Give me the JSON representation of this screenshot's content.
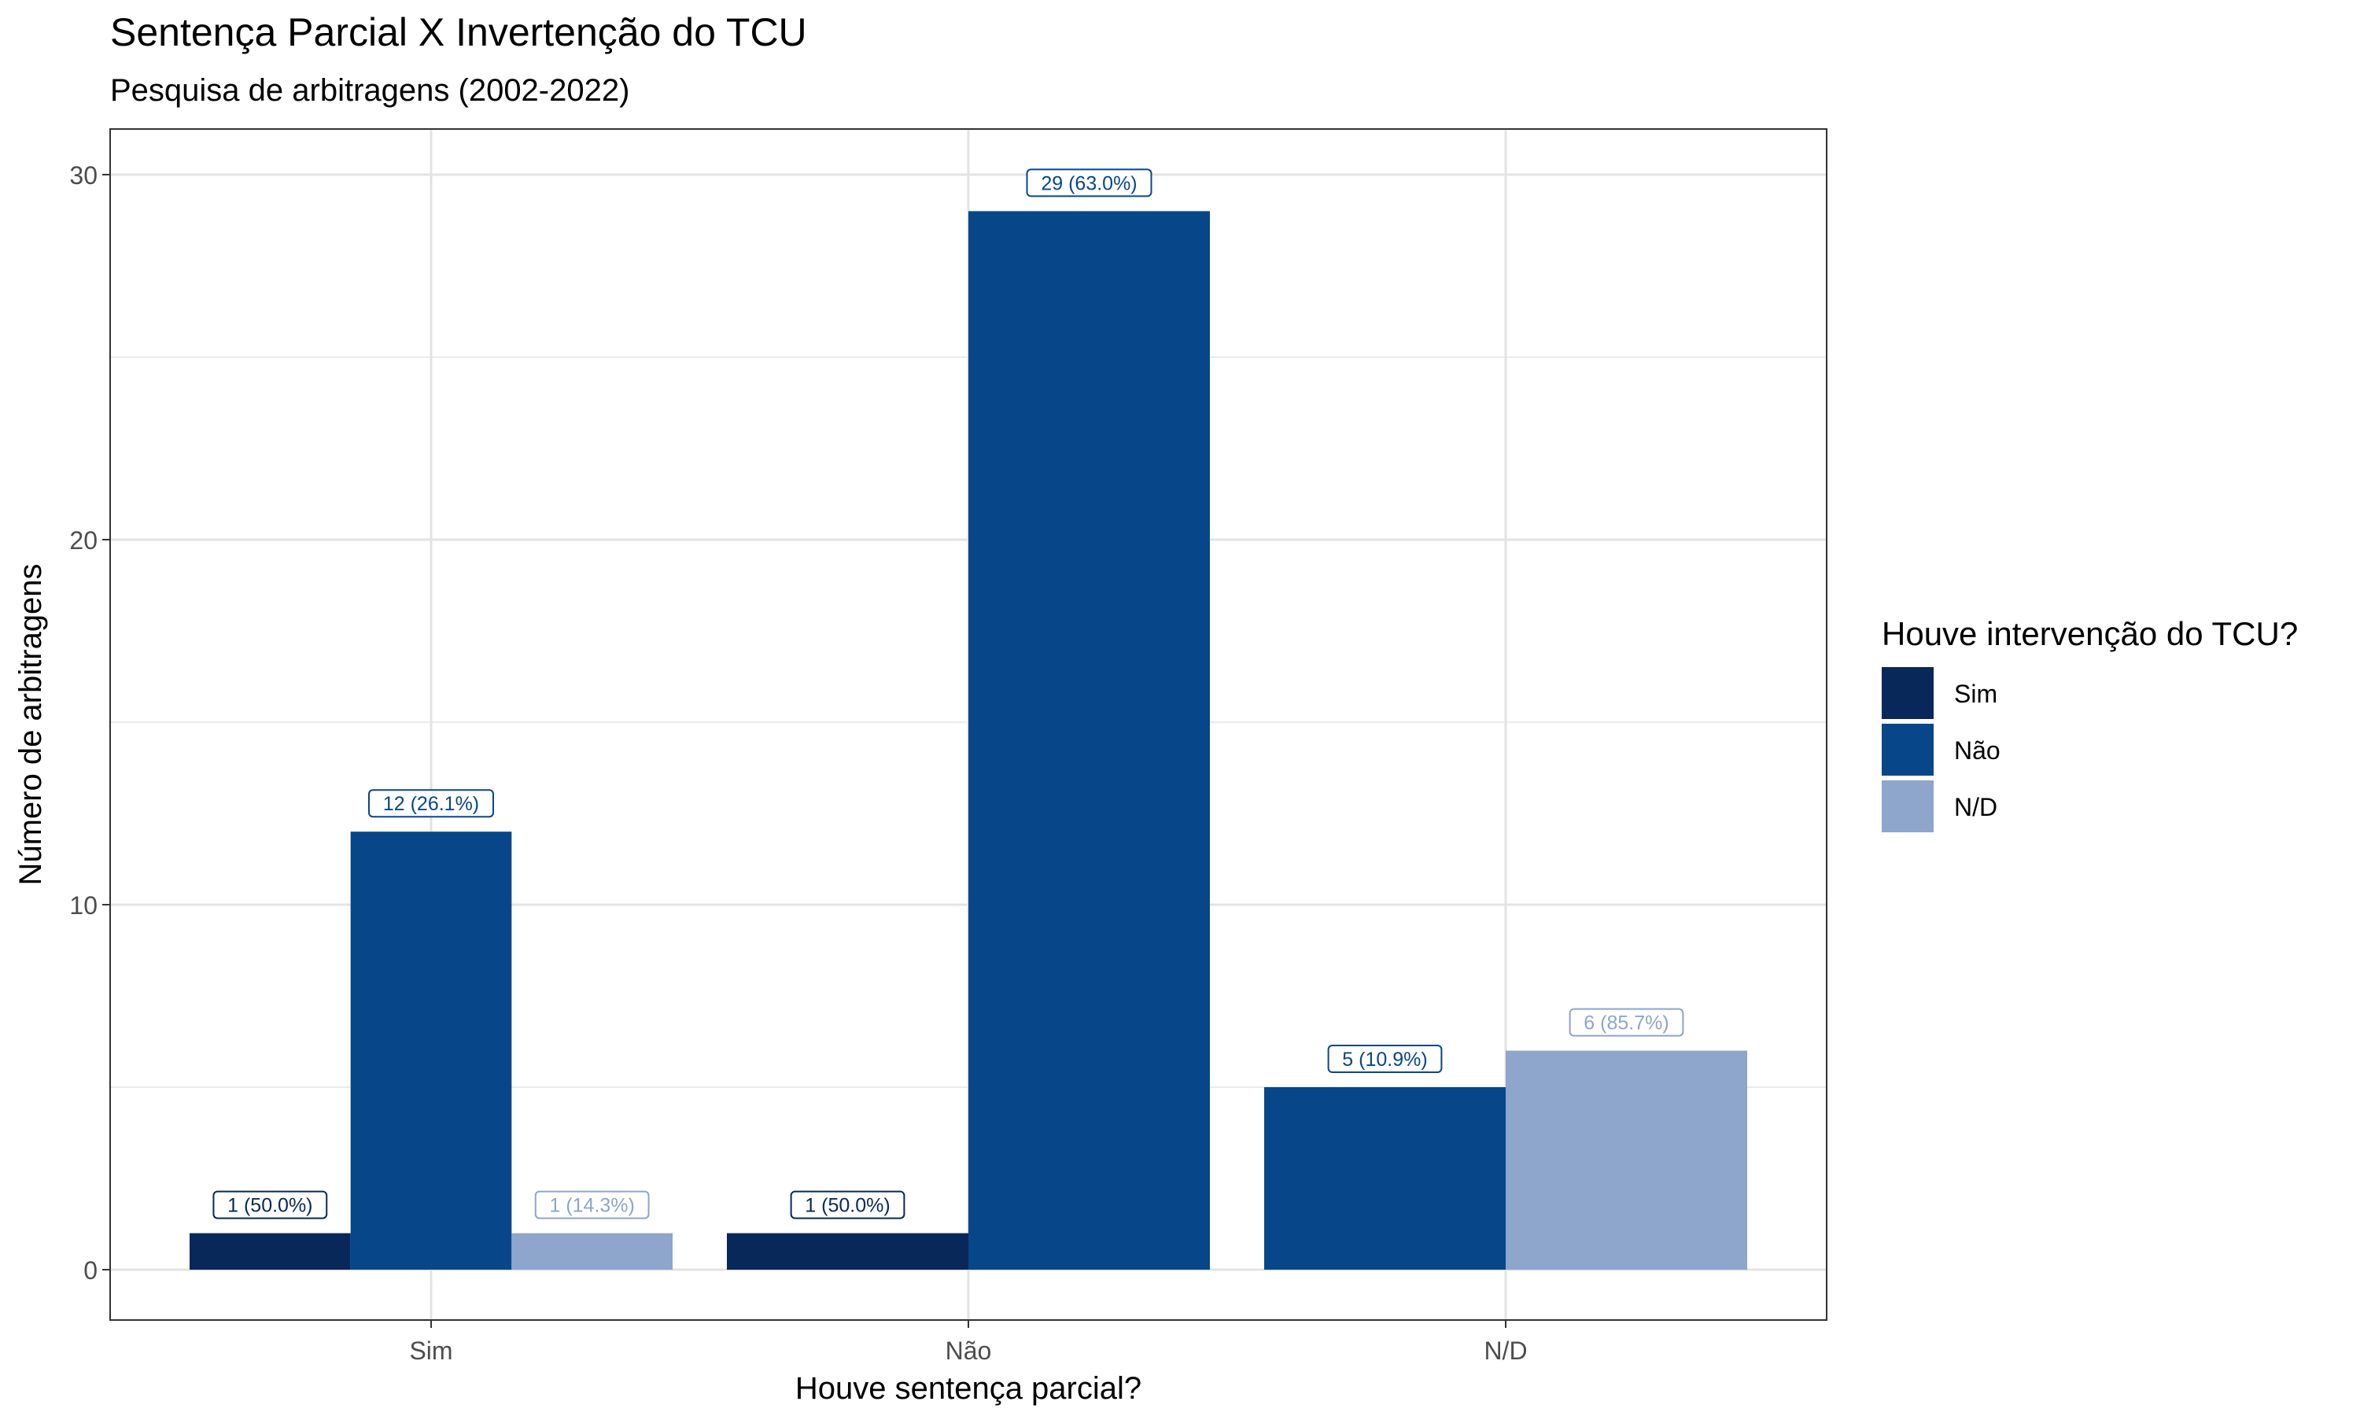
{
  "chart_data": {
    "type": "bar",
    "title": "Sentença Parcial X Invertenção do TCU",
    "subtitle": "Pesquisa de arbitragens (2002-2022)",
    "xlabel": "Houve sentença parcial?",
    "ylabel": "Número de arbitragens",
    "categories": [
      "Sim",
      "Não",
      "N/D"
    ],
    "ylim": [
      0,
      31
    ],
    "yticks": [
      0,
      10,
      20,
      30
    ],
    "grid": true,
    "legend": {
      "title": "Houve intervenção do TCU?",
      "position": "right"
    },
    "series": [
      {
        "name": "Sim",
        "color": "#08285a",
        "values": [
          1,
          1,
          null
        ],
        "labels": [
          "1 (50.0%)",
          "1 (50.0%)",
          null
        ]
      },
      {
        "name": "Não",
        "color": "#08468a",
        "values": [
          12,
          29,
          5
        ],
        "labels": [
          "12 (26.1%)",
          "29 (63.0%)",
          "5 (10.9%)"
        ]
      },
      {
        "name": "N/D",
        "color": "#8ea5cc",
        "values": [
          1,
          null,
          6
        ],
        "labels": [
          "1 (14.3%)",
          null,
          "6 (85.7%)"
        ]
      }
    ]
  }
}
